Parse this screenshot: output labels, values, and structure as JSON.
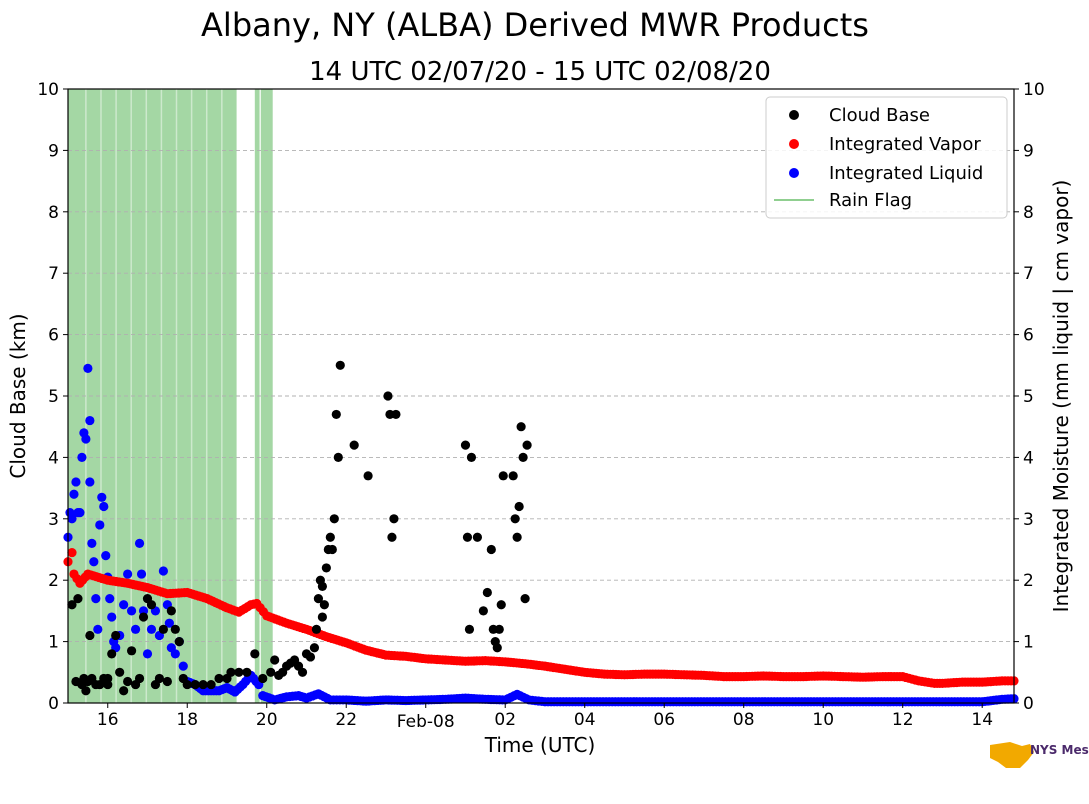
{
  "chart_data": {
    "type": "scatter",
    "title": "Albany, NY (ALBA) Derived MWR Products",
    "subtitle": "14 UTC 02/07/20 - 15 UTC 02/08/20",
    "xlabel": "Time (UTC)",
    "ylabel_left": "Cloud Base (km)",
    "ylabel_right": "Integrated Moisture (mm liquid | cm vapor)",
    "xlim": [
      15.0,
      38.8
    ],
    "ylim": [
      0,
      10
    ],
    "y_ticks": [
      0,
      1,
      2,
      3,
      4,
      5,
      6,
      7,
      8,
      9,
      10
    ],
    "x_ticks": [
      {
        "value": 16,
        "label": "16"
      },
      {
        "value": 18,
        "label": "18"
      },
      {
        "value": 20,
        "label": "20"
      },
      {
        "value": 22,
        "label": "22"
      },
      {
        "value": 24,
        "label": "Feb-08"
      },
      {
        "value": 26,
        "label": "02"
      },
      {
        "value": 28,
        "label": "04"
      },
      {
        "value": 30,
        "label": "06"
      },
      {
        "value": 32,
        "label": "08"
      },
      {
        "value": 34,
        "label": "10"
      },
      {
        "value": 36,
        "label": "12"
      },
      {
        "value": 38,
        "label": "14"
      }
    ],
    "grid": "horizontal dashed",
    "legend_position": "top-right",
    "legend": [
      {
        "label": "Cloud Base",
        "marker": "dot",
        "color": "#000000"
      },
      {
        "label": "Integrated Vapor",
        "marker": "dot",
        "color": "#ff0000"
      },
      {
        "label": "Integrated Liquid",
        "marker": "dot",
        "color": "#0000ff"
      },
      {
        "label": "Rain Flag",
        "marker": "line",
        "color": "#6cbf6c"
      }
    ],
    "rain_flag_periods": [
      [
        15.0,
        19.25
      ],
      [
        19.7,
        19.82
      ],
      [
        19.85,
        20.15
      ]
    ],
    "series": [
      {
        "name": "Cloud Base",
        "color": "#000000",
        "points": [
          [
            15.1,
            1.6
          ],
          [
            15.2,
            0.35
          ],
          [
            15.25,
            1.7
          ],
          [
            15.35,
            0.3
          ],
          [
            15.4,
            0.4
          ],
          [
            15.45,
            0.2
          ],
          [
            15.5,
            0.35
          ],
          [
            15.55,
            1.1
          ],
          [
            15.6,
            0.4
          ],
          [
            15.7,
            0.3
          ],
          [
            15.8,
            0.3
          ],
          [
            15.9,
            0.4
          ],
          [
            16.0,
            0.4
          ],
          [
            16.0,
            0.3
          ],
          [
            16.1,
            0.8
          ],
          [
            16.2,
            1.1
          ],
          [
            16.3,
            0.5
          ],
          [
            16.4,
            0.2
          ],
          [
            16.5,
            0.35
          ],
          [
            16.6,
            0.85
          ],
          [
            16.7,
            0.3
          ],
          [
            16.8,
            0.4
          ],
          [
            16.9,
            1.4
          ],
          [
            17.0,
            1.7
          ],
          [
            17.1,
            1.6
          ],
          [
            17.2,
            0.3
          ],
          [
            17.3,
            0.4
          ],
          [
            17.4,
            1.2
          ],
          [
            17.5,
            0.35
          ],
          [
            17.6,
            1.5
          ],
          [
            17.7,
            1.2
          ],
          [
            17.8,
            1.0
          ],
          [
            17.9,
            0.4
          ],
          [
            18.0,
            0.3
          ],
          [
            18.2,
            0.3
          ],
          [
            18.4,
            0.3
          ],
          [
            18.6,
            0.3
          ],
          [
            18.8,
            0.4
          ],
          [
            19.0,
            0.4
          ],
          [
            19.1,
            0.5
          ],
          [
            19.3,
            0.5
          ],
          [
            19.5,
            0.5
          ],
          [
            19.7,
            0.8
          ],
          [
            19.9,
            0.4
          ],
          [
            20.1,
            0.5
          ],
          [
            20.2,
            0.7
          ],
          [
            20.3,
            0.45
          ],
          [
            20.4,
            0.5
          ],
          [
            20.5,
            0.6
          ],
          [
            20.6,
            0.65
          ],
          [
            20.7,
            0.7
          ],
          [
            20.8,
            0.6
          ],
          [
            20.9,
            0.5
          ],
          [
            21.0,
            0.8
          ],
          [
            21.1,
            0.75
          ],
          [
            21.2,
            0.9
          ],
          [
            21.25,
            1.2
          ],
          [
            21.3,
            1.7
          ],
          [
            21.35,
            2.0
          ],
          [
            21.4,
            1.9
          ],
          [
            21.45,
            1.6
          ],
          [
            21.4,
            1.4
          ],
          [
            21.5,
            2.2
          ],
          [
            21.55,
            2.5
          ],
          [
            21.6,
            2.7
          ],
          [
            21.65,
            2.5
          ],
          [
            21.7,
            3.0
          ],
          [
            21.75,
            4.7
          ],
          [
            21.8,
            4.0
          ],
          [
            21.85,
            5.5
          ],
          [
            22.2,
            4.2
          ],
          [
            22.55,
            3.7
          ],
          [
            23.05,
            5.0
          ],
          [
            23.1,
            4.7
          ],
          [
            23.15,
            2.7
          ],
          [
            23.2,
            3.0
          ],
          [
            23.25,
            4.7
          ],
          [
            25.0,
            4.2
          ],
          [
            25.05,
            2.7
          ],
          [
            25.1,
            1.2
          ],
          [
            25.15,
            4.0
          ],
          [
            25.3,
            2.7
          ],
          [
            25.45,
            1.5
          ],
          [
            25.55,
            1.8
          ],
          [
            25.65,
            2.5
          ],
          [
            25.7,
            1.2
          ],
          [
            25.75,
            1.0
          ],
          [
            25.8,
            0.9
          ],
          [
            25.85,
            1.2
          ],
          [
            25.9,
            1.6
          ],
          [
            25.95,
            3.7
          ],
          [
            26.2,
            3.7
          ],
          [
            26.25,
            3.0
          ],
          [
            26.3,
            2.7
          ],
          [
            26.35,
            3.2
          ],
          [
            26.4,
            4.5
          ],
          [
            26.45,
            4.0
          ],
          [
            26.5,
            1.7
          ],
          [
            26.55,
            4.2
          ]
        ]
      },
      {
        "name": "Integrated Vapor",
        "color": "#ff0000",
        "points": [
          [
            15.0,
            2.3
          ],
          [
            15.1,
            2.45
          ],
          [
            15.15,
            2.1
          ],
          [
            15.3,
            1.95
          ],
          [
            15.5,
            2.1
          ],
          [
            16.0,
            2.0
          ],
          [
            16.5,
            1.95
          ],
          [
            17.0,
            1.88
          ],
          [
            17.5,
            1.78
          ],
          [
            18.0,
            1.8
          ],
          [
            18.5,
            1.7
          ],
          [
            19.0,
            1.55
          ],
          [
            19.3,
            1.48
          ],
          [
            19.6,
            1.6
          ],
          [
            19.75,
            1.62
          ],
          [
            20.0,
            1.42
          ],
          [
            20.5,
            1.3
          ],
          [
            21.0,
            1.2
          ],
          [
            21.5,
            1.08
          ],
          [
            22.0,
            0.98
          ],
          [
            22.5,
            0.86
          ],
          [
            23.0,
            0.78
          ],
          [
            23.5,
            0.76
          ],
          [
            24.0,
            0.72
          ],
          [
            24.5,
            0.7
          ],
          [
            25.0,
            0.68
          ],
          [
            25.5,
            0.69
          ],
          [
            26.0,
            0.67
          ],
          [
            26.5,
            0.64
          ],
          [
            27.0,
            0.6
          ],
          [
            27.5,
            0.55
          ],
          [
            28.0,
            0.5
          ],
          [
            28.5,
            0.47
          ],
          [
            29.0,
            0.46
          ],
          [
            29.5,
            0.47
          ],
          [
            30.0,
            0.47
          ],
          [
            30.5,
            0.46
          ],
          [
            31.0,
            0.45
          ],
          [
            31.5,
            0.43
          ],
          [
            32.0,
            0.43
          ],
          [
            32.5,
            0.44
          ],
          [
            33.0,
            0.43
          ],
          [
            33.5,
            0.43
          ],
          [
            34.0,
            0.44
          ],
          [
            34.5,
            0.43
          ],
          [
            35.0,
            0.42
          ],
          [
            35.5,
            0.43
          ],
          [
            36.0,
            0.43
          ],
          [
            36.4,
            0.36
          ],
          [
            36.8,
            0.32
          ],
          [
            37.0,
            0.32
          ],
          [
            37.5,
            0.34
          ],
          [
            38.0,
            0.34
          ],
          [
            38.5,
            0.36
          ],
          [
            38.8,
            0.36
          ]
        ]
      },
      {
        "name": "Integrated Liquid",
        "color": "#0000ff",
        "points": [
          [
            15.0,
            2.7
          ],
          [
            15.05,
            3.1
          ],
          [
            15.1,
            3.0
          ],
          [
            15.15,
            3.4
          ],
          [
            15.2,
            3.6
          ],
          [
            15.25,
            3.1
          ],
          [
            15.3,
            3.1
          ],
          [
            15.35,
            4.0
          ],
          [
            15.4,
            4.4
          ],
          [
            15.45,
            4.3
          ],
          [
            15.5,
            5.45
          ],
          [
            15.55,
            4.6
          ],
          [
            15.55,
            3.6
          ],
          [
            15.6,
            2.6
          ],
          [
            15.65,
            2.3
          ],
          [
            15.7,
            1.7
          ],
          [
            15.75,
            1.2
          ],
          [
            15.8,
            2.9
          ],
          [
            15.85,
            3.35
          ],
          [
            15.9,
            3.2
          ],
          [
            15.95,
            2.4
          ],
          [
            16.0,
            2.05
          ],
          [
            16.05,
            1.7
          ],
          [
            16.1,
            1.4
          ],
          [
            16.15,
            1.0
          ],
          [
            16.2,
            0.9
          ],
          [
            16.3,
            1.1
          ],
          [
            16.4,
            1.6
          ],
          [
            16.5,
            2.1
          ],
          [
            16.6,
            1.5
          ],
          [
            16.7,
            1.2
          ],
          [
            16.8,
            2.6
          ],
          [
            16.85,
            2.1
          ],
          [
            16.9,
            1.5
          ],
          [
            17.0,
            0.8
          ],
          [
            17.1,
            1.2
          ],
          [
            17.2,
            1.5
          ],
          [
            17.3,
            1.1
          ],
          [
            17.4,
            2.15
          ],
          [
            17.5,
            1.6
          ],
          [
            17.55,
            1.3
          ],
          [
            17.6,
            0.9
          ],
          [
            17.7,
            0.8
          ],
          [
            17.8,
            1.0
          ],
          [
            17.9,
            0.6
          ],
          [
            18.0,
            0.35
          ],
          [
            18.2,
            0.3
          ],
          [
            18.4,
            0.2
          ],
          [
            18.6,
            0.2
          ],
          [
            18.8,
            0.2
          ],
          [
            19.0,
            0.25
          ],
          [
            19.2,
            0.18
          ],
          [
            19.4,
            0.3
          ],
          [
            19.6,
            0.45
          ],
          [
            19.8,
            0.3
          ],
          [
            19.9,
            0.12
          ],
          [
            20.2,
            0.05
          ],
          [
            20.5,
            0.1
          ],
          [
            20.8,
            0.12
          ],
          [
            21.0,
            0.08
          ],
          [
            21.3,
            0.15
          ],
          [
            21.6,
            0.05
          ],
          [
            22.0,
            0.05
          ],
          [
            22.5,
            0.03
          ],
          [
            23.0,
            0.05
          ],
          [
            23.5,
            0.04
          ],
          [
            24.0,
            0.05
          ],
          [
            24.5,
            0.06
          ],
          [
            25.0,
            0.08
          ],
          [
            25.5,
            0.06
          ],
          [
            26.0,
            0.05
          ],
          [
            26.3,
            0.14
          ],
          [
            26.6,
            0.05
          ],
          [
            27.0,
            0.02
          ],
          [
            28.0,
            0.02
          ],
          [
            29.0,
            0.02
          ],
          [
            30.0,
            0.02
          ],
          [
            31.0,
            0.02
          ],
          [
            32.0,
            0.02
          ],
          [
            33.0,
            0.02
          ],
          [
            34.0,
            0.02
          ],
          [
            35.0,
            0.02
          ],
          [
            36.0,
            0.02
          ],
          [
            37.0,
            0.02
          ],
          [
            38.0,
            0.02
          ],
          [
            38.5,
            0.06
          ],
          [
            38.8,
            0.07
          ]
        ]
      }
    ]
  },
  "logo": {
    "brand": "NYS Mesonet"
  }
}
